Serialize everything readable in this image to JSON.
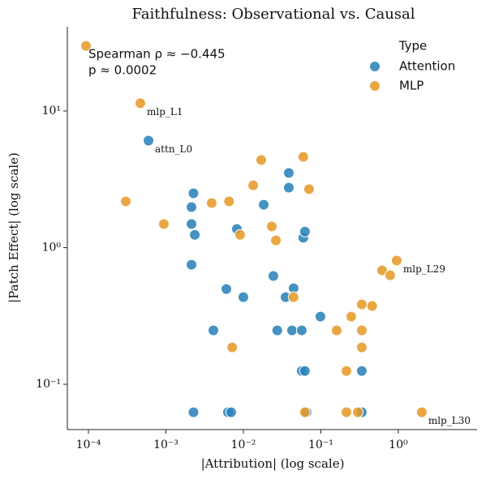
{
  "chart_data": {
    "type": "scatter",
    "title": "Faithfulness: Observational vs. Causal",
    "xlabel": "|Attribution| (log scale)",
    "ylabel": "|Patch Effect| (log scale)",
    "xscale": "log",
    "yscale": "log",
    "xlim": [
      5.34e-05,
      10.4
    ],
    "ylim": [
      0.0466,
      41.4
    ],
    "xticks": [
      {
        "value": 0.0001,
        "label": "10⁻⁴"
      },
      {
        "value": 0.001,
        "label": "10⁻³"
      },
      {
        "value": 0.01,
        "label": "10⁻²"
      },
      {
        "value": 0.1,
        "label": "10⁻¹"
      },
      {
        "value": 1,
        "label": "10⁰"
      }
    ],
    "yticks": [
      {
        "value": 0.1,
        "label": "10⁻¹"
      },
      {
        "value": 1,
        "label": "10⁰"
      },
      {
        "value": 10,
        "label": "10¹"
      }
    ],
    "legend": "upper right",
    "legend_title": "Type",
    "stats_text": [
      "Spearman ρ ≈ −0.445",
      "p ≈ 0.0002"
    ],
    "series": [
      {
        "name": "Attention",
        "color": "#2b83ba",
        "x": [
          0.000596,
          0.00227,
          0.00214,
          0.00214,
          0.00236,
          0.00214,
          0.00227,
          0.0041,
          0.00603,
          0.00632,
          0.00695,
          0.00824,
          0.01,
          0.0183,
          0.0244,
          0.0351,
          0.0386,
          0.0386,
          0.0445,
          0.0274,
          0.0425,
          0.0567,
          0.0594,
          0.0623,
          0.0567,
          0.0623,
          0.0654,
          0.0988,
          0.338,
          0.338
        ],
        "y": [
          6.07,
          2.5,
          1.98,
          1.49,
          1.24,
          0.75,
          0.0624,
          0.248,
          0.498,
          0.0624,
          0.0624,
          1.37,
          0.434,
          2.06,
          0.62,
          0.434,
          3.52,
          2.75,
          0.505,
          0.248,
          0.248,
          0.248,
          1.18,
          1.31,
          0.125,
          0.125,
          0.0624,
          0.313,
          0.125,
          0.0624
        ]
      },
      {
        "name": "MLP",
        "color": "#e69b2a",
        "x": [
          9.3e-05,
          0.000468,
          0.000303,
          0.00094,
          0.0039,
          0.00654,
          0.00908,
          0.00718,
          0.0134,
          0.017,
          0.0233,
          0.0263,
          0.0445,
          0.0594,
          0.0705,
          0.0623,
          0.16,
          0.214,
          0.214,
          0.247,
          0.3,
          0.338,
          0.338,
          0.338,
          0.46,
          0.618,
          0.786,
          0.953,
          2.01
        ],
        "y": [
          30.0,
          11.4,
          2.18,
          1.49,
          2.12,
          2.18,
          1.24,
          0.186,
          2.86,
          4.38,
          1.43,
          1.13,
          0.434,
          4.62,
          2.68,
          0.0624,
          0.248,
          0.125,
          0.0624,
          0.313,
          0.0624,
          0.384,
          0.186,
          0.248,
          0.374,
          0.682,
          0.628,
          0.804,
          0.0624
        ]
      }
    ],
    "annotations": [
      {
        "text": "mlp_L1",
        "x": 0.000468,
        "y": 11.4
      },
      {
        "text": "attn_L0",
        "x": 0.000596,
        "y": 6.07
      },
      {
        "text": "mlp_L29",
        "x": 0.953,
        "y": 0.804
      },
      {
        "text": "mlp_L30",
        "x": 2.01,
        "y": 0.0624
      }
    ]
  }
}
